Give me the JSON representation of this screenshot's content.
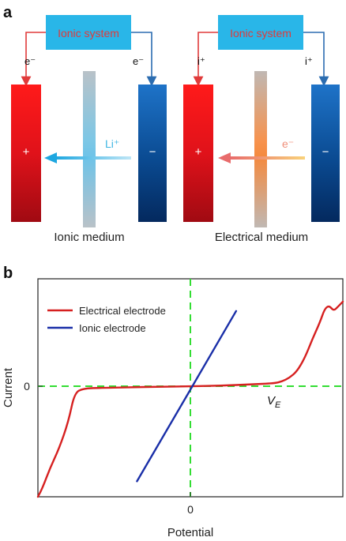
{
  "panel_a": {
    "label": "a",
    "left": {
      "box_label": "Ionic system",
      "wire_left_label": "e⁻",
      "wire_right_label": "e⁻",
      "plus_sign": "+",
      "minus_sign": "−",
      "carrier_label": "Li⁺",
      "medium_label": "Ionic medium"
    },
    "right": {
      "box_label": "Ionic system",
      "wire_left_label": "i⁺",
      "wire_right_label": "i⁺",
      "plus_sign": "+",
      "minus_sign": "−",
      "carrier_label": "e⁻",
      "medium_label": "Electrical medium"
    },
    "colors": {
      "box_fill": "#29b6e8",
      "box_text": "#e03a3a",
      "wire_red": "#e03a3a",
      "wire_blue": "#2b6cb0",
      "cathode_red": "#e2131b",
      "anode_blue": "#0d4f96",
      "ion_arrow": "#3fb6e3",
      "electron_arrow": "#f08f7a"
    }
  },
  "panel_b": {
    "label": "b",
    "ylabel": "Current",
    "xlabel": "Potential",
    "x_tick": "0",
    "y_tick": "0",
    "annotation": "V",
    "annotation_sub": "E"
  },
  "chart_data": {
    "type": "line",
    "xlabel": "Potential",
    "ylabel": "Current",
    "x_ticks": [
      "0"
    ],
    "y_ticks": [
      "0"
    ],
    "reference_lines": [
      "x = 0",
      "y = 0"
    ],
    "legend_position": "top-left",
    "series": [
      {
        "name": "Electrical electrode",
        "color": "#d62020",
        "x": [
          -1.0,
          -0.97,
          -0.92,
          -0.86,
          -0.8,
          -0.76,
          -0.7,
          -0.6,
          -0.4,
          -0.2,
          0.0,
          0.2,
          0.4,
          0.55,
          0.6,
          0.65,
          0.7,
          0.75,
          0.8,
          0.85,
          0.88,
          0.91,
          0.94,
          0.97,
          1.0
        ],
        "y": [
          -1.0,
          -0.92,
          -0.74,
          -0.56,
          -0.32,
          -0.06,
          -0.02,
          -0.015,
          -0.01,
          -0.005,
          0.0,
          0.005,
          0.02,
          0.03,
          0.05,
          0.09,
          0.16,
          0.3,
          0.5,
          0.68,
          0.82,
          0.86,
          0.8,
          0.85,
          0.9
        ]
      },
      {
        "name": "Ionic electrode",
        "color": "#1a2fa8",
        "x": [
          -0.35,
          0.3
        ],
        "y": [
          -0.86,
          0.8
        ]
      }
    ],
    "annotations": [
      "V_E"
    ]
  }
}
